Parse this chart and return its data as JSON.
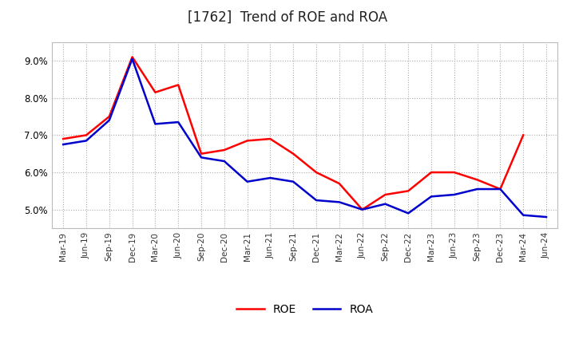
{
  "title": "[1762]  Trend of ROE and ROA",
  "x_labels": [
    "Mar-19",
    "Jun-19",
    "Sep-19",
    "Dec-19",
    "Mar-20",
    "Jun-20",
    "Sep-20",
    "Dec-20",
    "Mar-21",
    "Jun-21",
    "Sep-21",
    "Dec-21",
    "Mar-22",
    "Jun-22",
    "Sep-22",
    "Dec-22",
    "Mar-23",
    "Jun-23",
    "Sep-23",
    "Dec-23",
    "Mar-24",
    "Jun-24"
  ],
  "roe": [
    6.9,
    7.0,
    7.5,
    9.1,
    8.15,
    8.35,
    6.5,
    6.6,
    6.85,
    6.9,
    6.5,
    6.0,
    5.7,
    5.0,
    5.4,
    5.5,
    6.0,
    6.0,
    5.8,
    5.55,
    7.0,
    null
  ],
  "roa": [
    6.75,
    6.85,
    7.4,
    9.05,
    7.3,
    7.35,
    6.4,
    6.3,
    5.75,
    5.85,
    5.75,
    5.25,
    5.2,
    5.0,
    5.15,
    4.9,
    5.35,
    5.4,
    5.55,
    5.55,
    4.85,
    4.8
  ],
  "roe_color": "#FF0000",
  "roa_color": "#0000CC",
  "background_color": "#FFFFFF",
  "grid_color": "#AAAAAA",
  "ylim": [
    4.5,
    9.5
  ],
  "yticks": [
    5.0,
    6.0,
    7.0,
    8.0,
    9.0
  ],
  "title_fontsize": 12,
  "legend_labels": [
    "ROE",
    "ROA"
  ]
}
